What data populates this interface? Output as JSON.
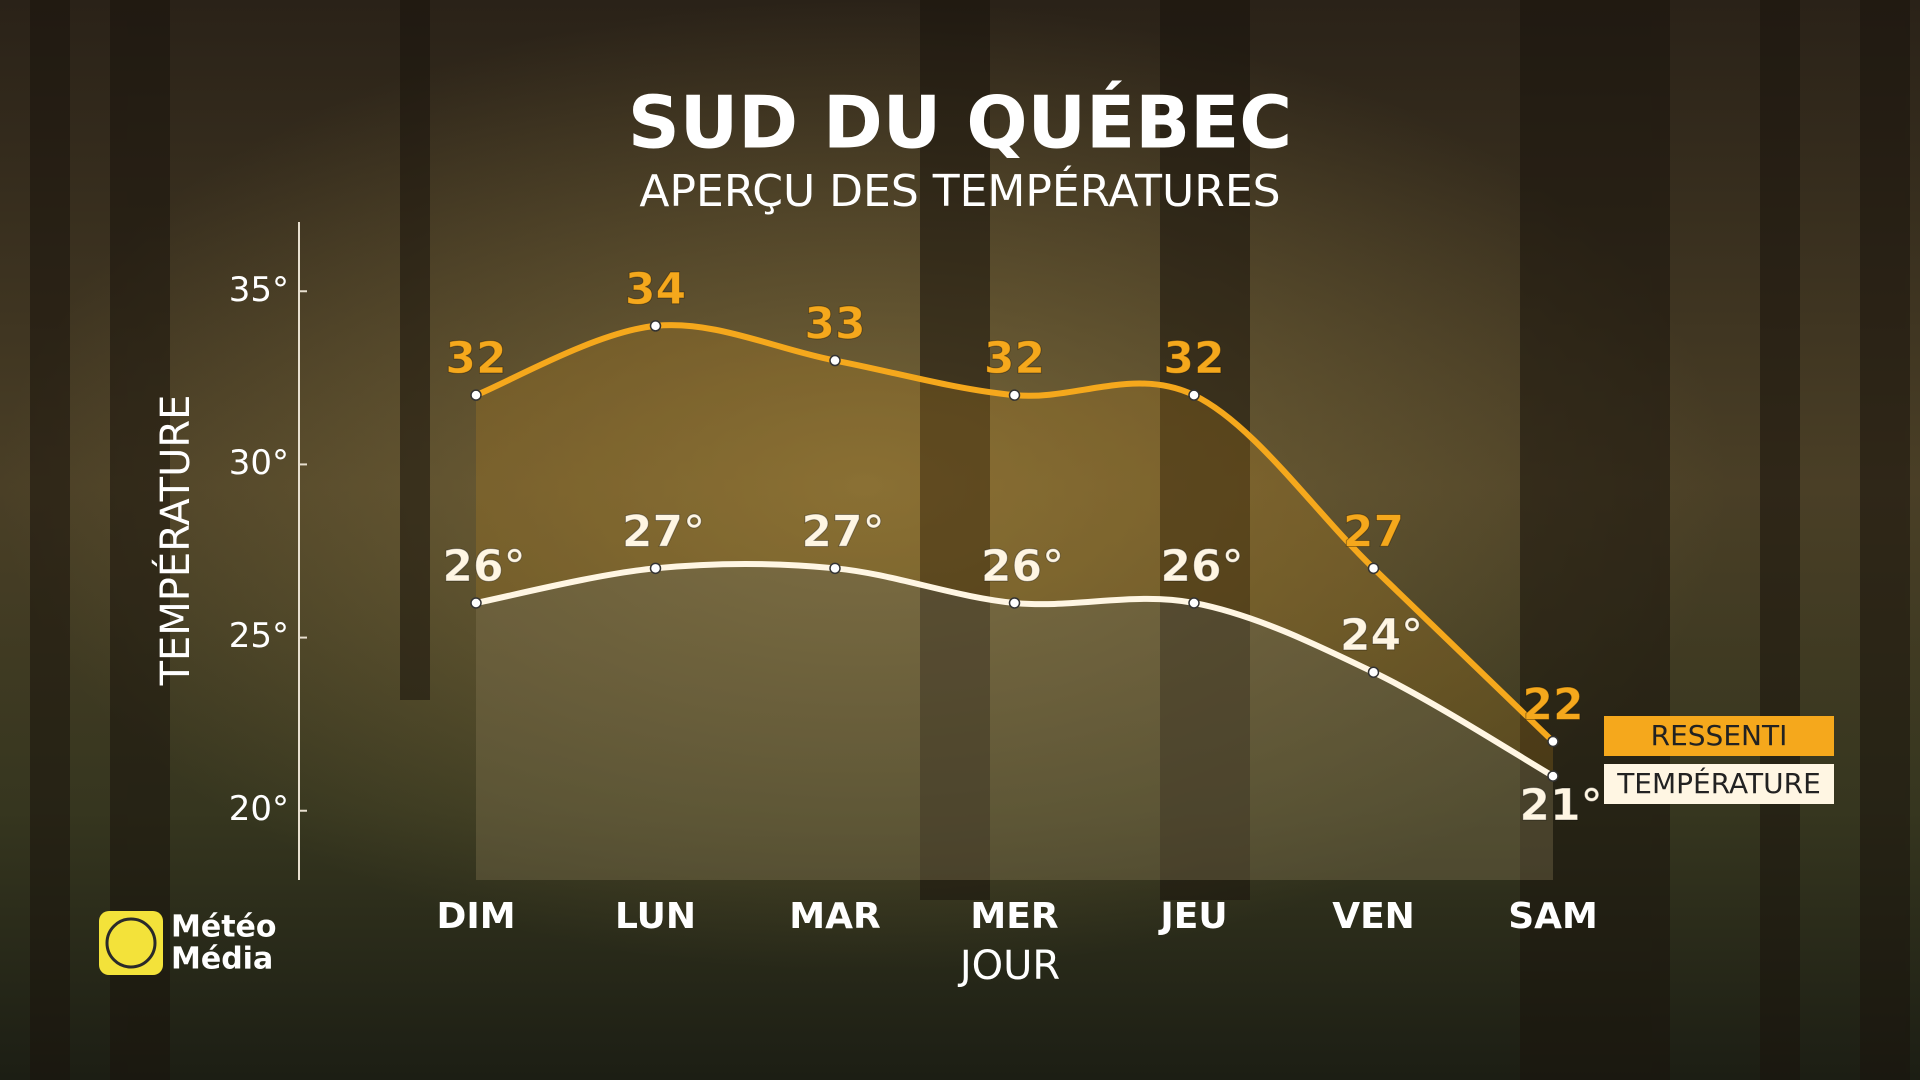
{
  "chart_data": {
    "type": "line",
    "title": "SUD DU QUÉBEC",
    "subtitle": "APERÇU DES TEMPÉRATURES",
    "xlabel": "JOUR",
    "ylabel": "TEMPÉRATURE",
    "categories": [
      "DIM",
      "LUN",
      "MAR",
      "MER",
      "JEU",
      "VEN",
      "SAM"
    ],
    "series": [
      {
        "name": "RESSENTI",
        "color": "#f5a81c",
        "values": [
          32,
          34,
          33,
          32,
          32,
          27,
          22
        ]
      },
      {
        "name": "TEMPÉRATURE",
        "color": "#fff6e3",
        "values": [
          26,
          27,
          27,
          26,
          26,
          24,
          21
        ],
        "value_labels": [
          "26°",
          "27°",
          "27°",
          "26°",
          "26°",
          "24°",
          "21°"
        ]
      }
    ],
    "ylim": [
      18,
      37
    ],
    "yticks": [
      {
        "value": 20,
        "label": "20°"
      },
      {
        "value": 25,
        "label": "25°"
      },
      {
        "value": 30,
        "label": "30°"
      },
      {
        "value": 35,
        "label": "35°"
      }
    ]
  },
  "logo": [
    "Météo",
    "Média"
  ]
}
